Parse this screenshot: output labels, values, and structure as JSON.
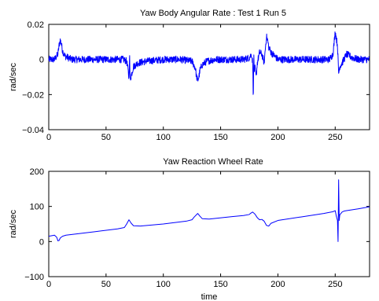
{
  "chart_data": [
    {
      "type": "line",
      "title": "Yaw Body Angular Rate : Test 1 Run 5",
      "xlabel": "",
      "ylabel": "rad/sec",
      "xlim": [
        0,
        280
      ],
      "ylim": [
        -0.04,
        0.02
      ],
      "xticks": [
        0,
        50,
        100,
        150,
        200,
        250
      ],
      "yticks": [
        -0.04,
        -0.02,
        0,
        0.02
      ],
      "ytick_labels": [
        "−0.04",
        "−0.02",
        "0",
        "0.02"
      ],
      "color": "#0000ff",
      "series": [
        {
          "x": [
            0,
            5,
            8,
            9,
            10,
            11,
            12,
            14,
            17,
            20,
            25,
            30,
            40,
            50,
            60,
            65,
            68,
            69,
            70,
            70.5,
            71,
            72,
            74,
            78,
            85,
            100,
            115,
            125,
            128,
            129,
            130,
            131,
            132,
            134,
            138,
            145,
            160,
            170,
            175,
            177,
            178,
            178.5,
            179,
            179.5,
            180,
            181,
            182,
            184,
            186,
            188,
            189,
            190,
            191,
            192,
            194,
            197,
            200,
            210,
            225,
            240,
            245,
            248,
            249,
            250,
            251,
            252,
            253,
            254,
            256,
            260,
            265,
            270,
            280
          ],
          "y": [
            0.0,
            0.0,
            0.003,
            0.008,
            0.011,
            0.009,
            0.005,
            0.002,
            0.001,
            0.0,
            0.0,
            0.0,
            0.0,
            0.0,
            0.0,
            0.0,
            -0.001,
            -0.005,
            -0.011,
            0.004,
            -0.012,
            -0.009,
            -0.004,
            -0.002,
            -0.001,
            0.0,
            0.0,
            -0.001,
            -0.005,
            -0.01,
            -0.012,
            -0.01,
            -0.006,
            -0.003,
            -0.001,
            0.0,
            0.0,
            0.0,
            0.001,
            0.003,
            -0.002,
            -0.022,
            0.002,
            -0.008,
            -0.005,
            -0.01,
            -0.002,
            0.004,
            0.003,
            -0.002,
            0.006,
            0.013,
            0.011,
            0.007,
            0.004,
            0.002,
            0.0,
            0.0,
            0.0,
            0.0,
            0.0,
            0.003,
            0.009,
            0.016,
            0.012,
            0.008,
            -0.008,
            -0.004,
            -0.002,
            0.003,
            0.001,
            0.0,
            0.0
          ],
          "noise": 0.002
        }
      ]
    },
    {
      "type": "line",
      "title": "Yaw Reaction Wheel Rate",
      "xlabel": "time",
      "ylabel": "rad/sec",
      "xlim": [
        0,
        280
      ],
      "ylim": [
        -100,
        200
      ],
      "xticks": [
        0,
        50,
        100,
        150,
        200,
        250
      ],
      "yticks": [
        -100,
        0,
        100,
        200
      ],
      "ytick_labels": [
        "−100",
        "0",
        "100",
        "200"
      ],
      "color": "#0000ff",
      "series": [
        {
          "x": [
            0,
            5,
            7,
            8,
            9,
            10,
            12,
            15,
            20,
            40,
            60,
            66,
            68,
            70,
            72,
            74,
            80,
            100,
            120,
            125,
            127,
            130,
            132,
            134,
            140,
            160,
            170,
            175,
            176,
            178,
            180,
            182,
            184,
            186,
            188,
            190,
            192,
            194,
            200,
            220,
            240,
            248,
            250,
            251,
            252,
            252.5,
            253,
            253.5,
            254,
            256,
            258,
            260,
            270,
            280
          ],
          "y": [
            15,
            18,
            12,
            2,
            3,
            10,
            15,
            18,
            20,
            28,
            36,
            40,
            50,
            62,
            52,
            45,
            44,
            50,
            58,
            62,
            70,
            80,
            72,
            65,
            64,
            71,
            74,
            77,
            80,
            84,
            78,
            68,
            62,
            63,
            58,
            46,
            44,
            52,
            60,
            70,
            80,
            85,
            88,
            72,
            60,
            0,
            176,
            60,
            76,
            84,
            87,
            88,
            93,
            99
          ]
        }
      ]
    }
  ]
}
